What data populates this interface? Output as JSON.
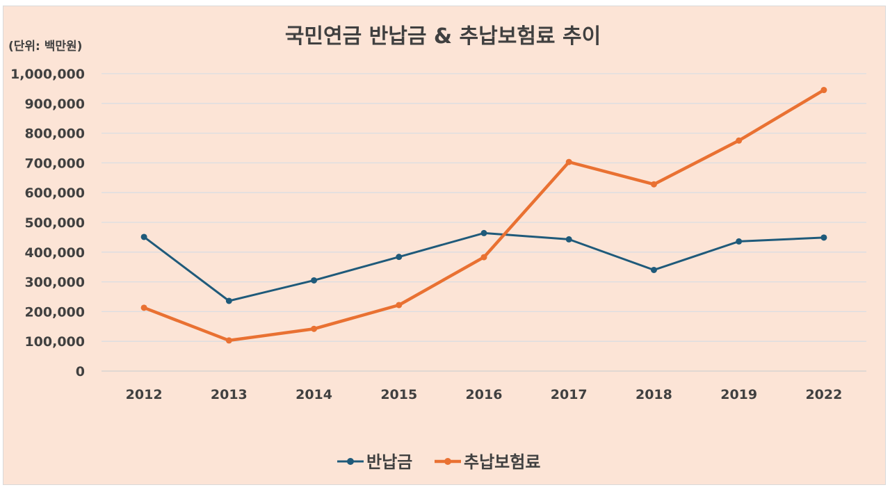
{
  "chart_data": {
    "type": "line",
    "title": "국민연금 반납금 & 추납보험료 추이",
    "unit_label": "(단위: 백만원)",
    "categories": [
      "2012",
      "2013",
      "2014",
      "2015",
      "2016",
      "2017",
      "2018",
      "2019",
      "2022"
    ],
    "ylim": [
      0,
      1000000
    ],
    "y_ticks": [
      "0",
      "100,000",
      "200,000",
      "300,000",
      "400,000",
      "500,000",
      "600,000",
      "700,000",
      "800,000",
      "900,000",
      "1,000,000"
    ],
    "grid": true,
    "legend_position": "bottom",
    "series": [
      {
        "name": "반납금",
        "color": "#1f5a7a",
        "values": [
          451000,
          236000,
          305000,
          384000,
          464000,
          443000,
          340000,
          436000,
          449000
        ]
      },
      {
        "name": "추납보험료",
        "color": "#e97132",
        "values": [
          213000,
          103000,
          142000,
          222000,
          383000,
          703000,
          628000,
          775000,
          945000
        ]
      }
    ]
  }
}
